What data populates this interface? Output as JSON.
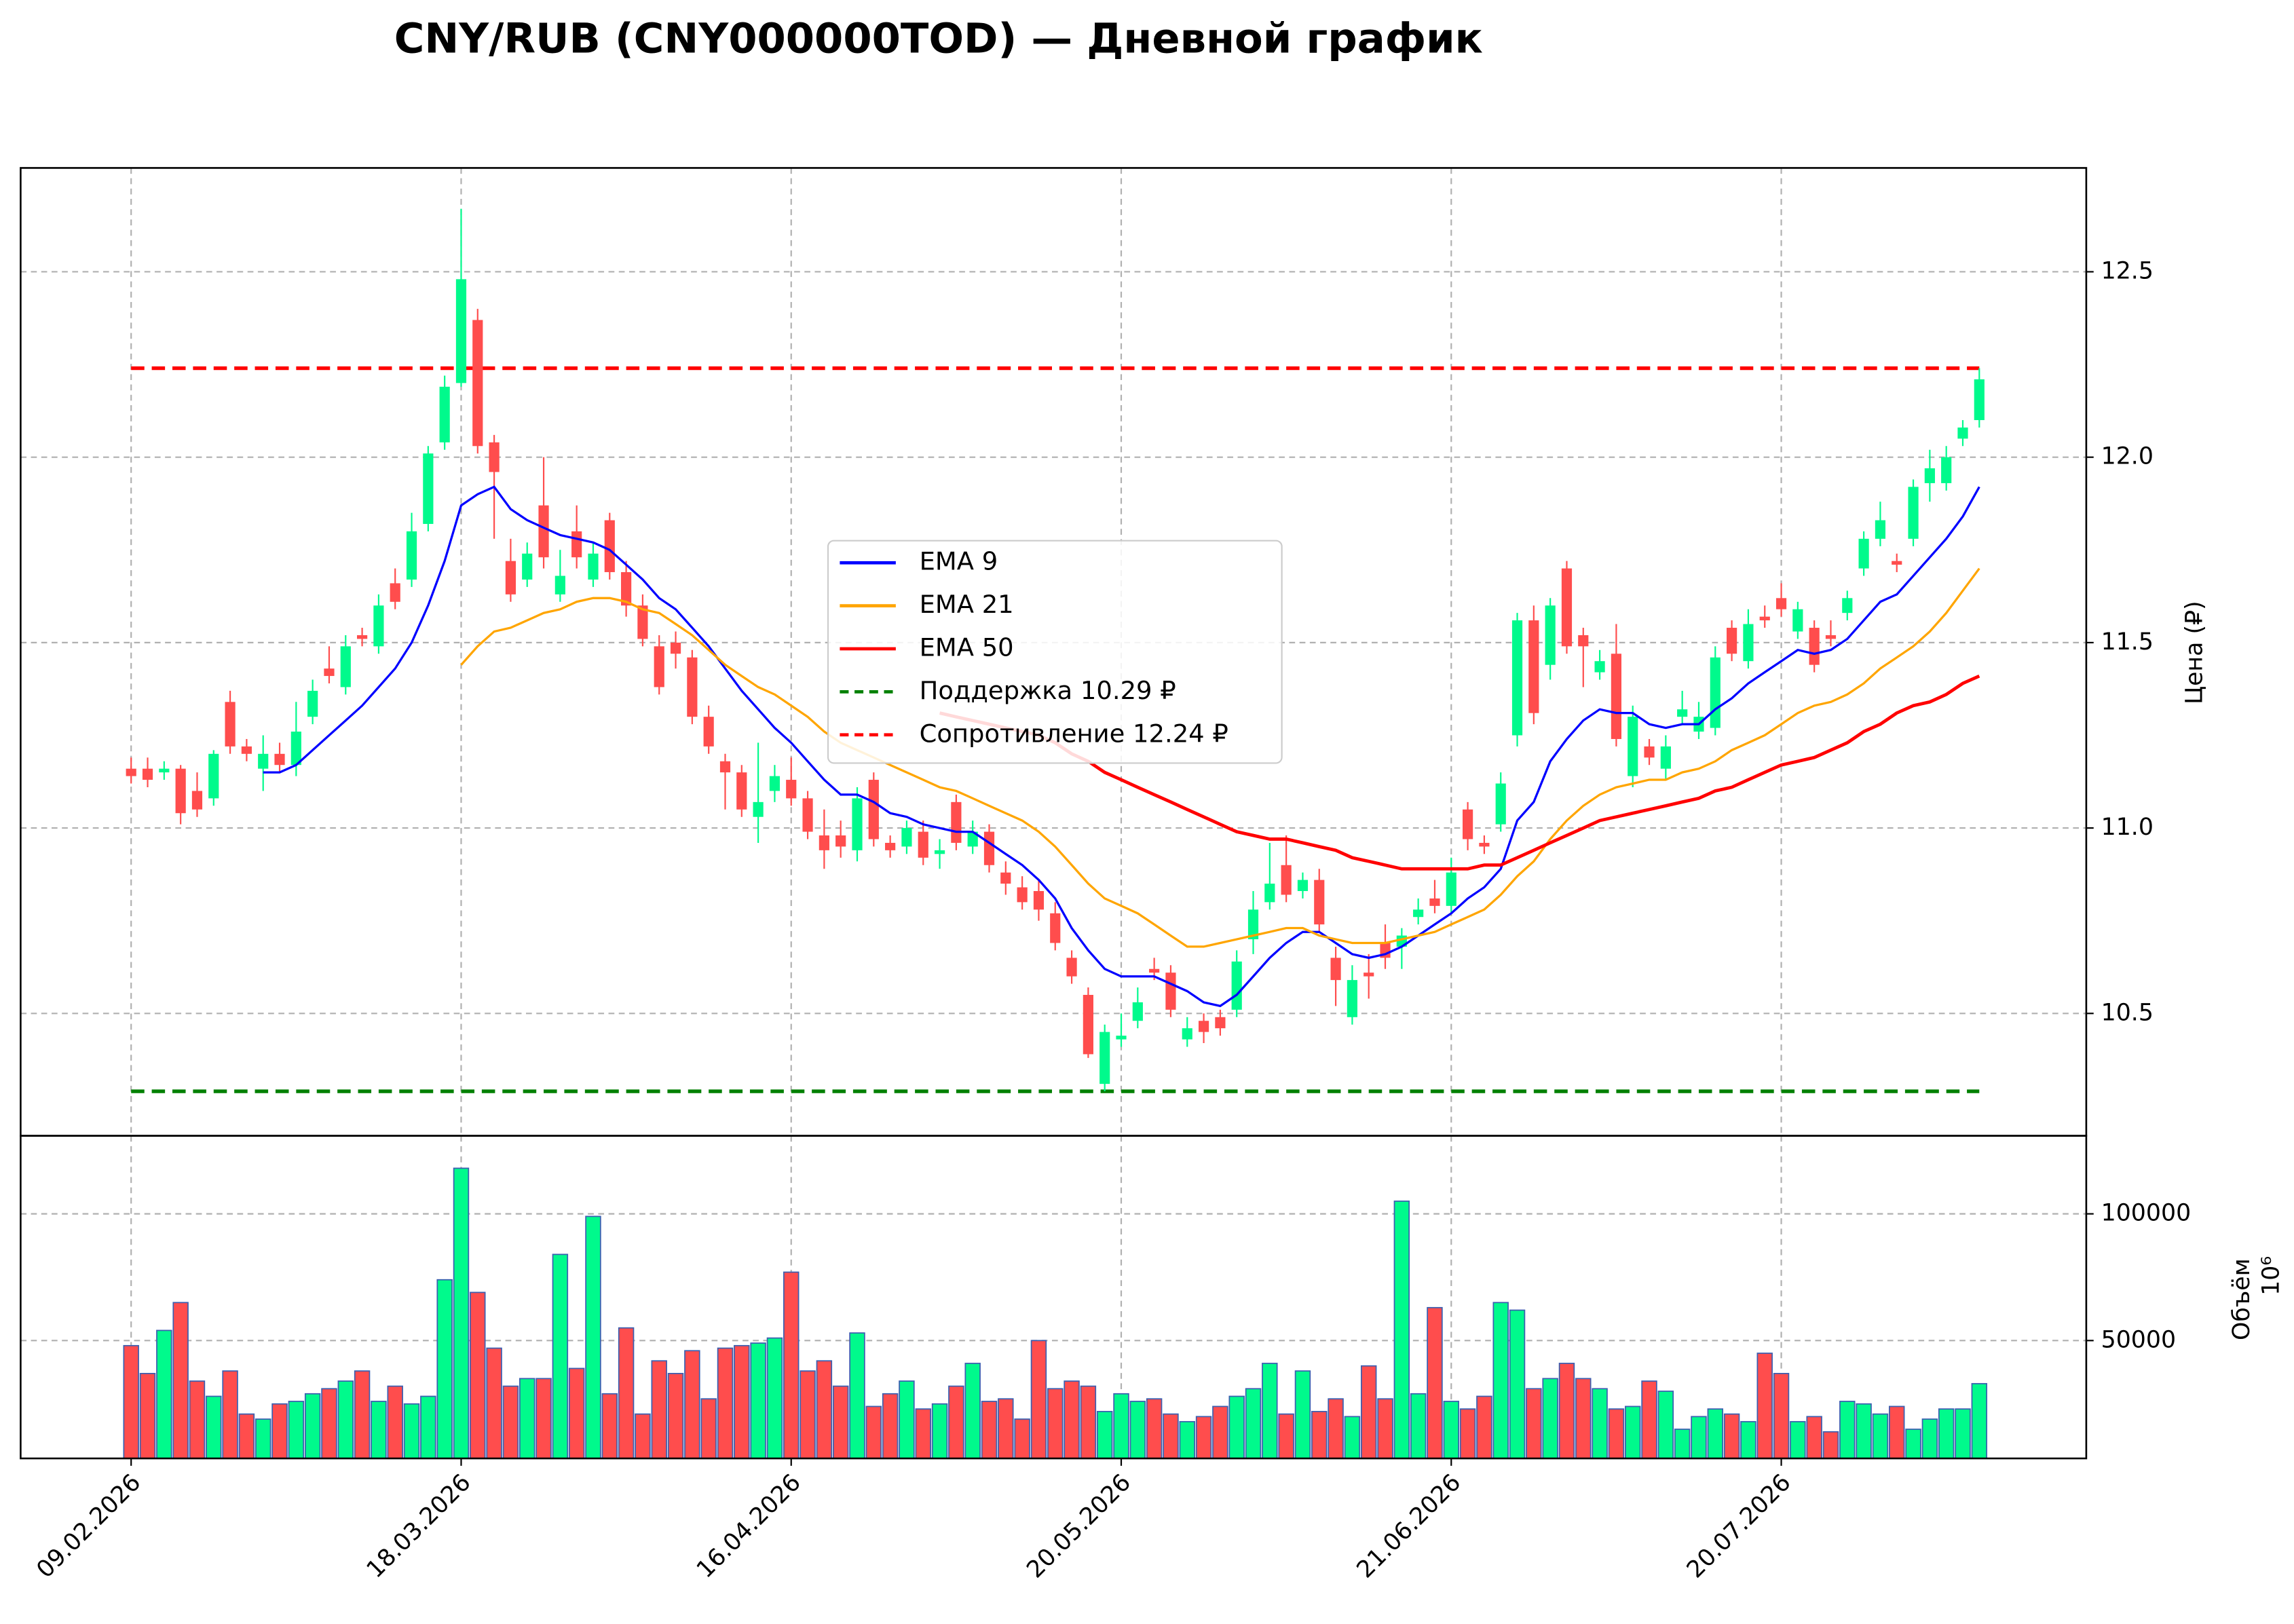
{
  "chart_data": {
    "type": "candlestick",
    "title": "CNY/RUB (CNY000000TOD) — Дневной график",
    "y_label": "Цена (₽)",
    "categories": [
      "09.02.2026",
      null,
      null,
      null,
      null,
      null,
      null,
      null,
      null,
      null,
      null,
      null,
      null,
      null,
      null,
      null,
      null,
      null,
      null,
      null,
      "18.03.2026",
      null,
      null,
      null,
      null,
      null,
      null,
      null,
      null,
      null,
      null,
      null,
      null,
      null,
      null,
      null,
      null,
      null,
      null,
      null,
      "16.04.2026",
      null,
      null,
      null,
      null,
      null,
      null,
      null,
      null,
      null,
      null,
      null,
      null,
      null,
      null,
      null,
      null,
      null,
      null,
      null,
      "20.05.2026",
      null,
      null,
      null,
      null,
      null,
      null,
      null,
      null,
      null,
      null,
      null,
      null,
      null,
      null,
      null,
      null,
      null,
      null,
      null,
      "21.06.2026",
      null,
      null,
      null,
      null,
      null,
      null,
      null,
      null,
      null,
      null,
      null,
      null,
      null,
      null,
      null,
      null,
      null,
      null,
      null,
      "20.07.2026",
      null,
      null,
      null,
      null,
      null,
      null,
      null,
      null,
      null,
      null,
      null,
      null
    ],
    "open": [
      11.16,
      11.16,
      11.15,
      11.16,
      11.1,
      11.08,
      11.34,
      11.22,
      11.16,
      11.2,
      11.17,
      11.3,
      11.43,
      11.38,
      11.52,
      11.49,
      11.66,
      11.67,
      11.82,
      12.04,
      12.2,
      12.37,
      12.04,
      11.72,
      11.67,
      11.87,
      11.63,
      11.8,
      11.67,
      11.83,
      11.69,
      11.6,
      11.49,
      11.5,
      11.46,
      11.3,
      11.18,
      11.15,
      11.03,
      11.1,
      11.13,
      11.08,
      10.98,
      10.98,
      10.94,
      11.13,
      10.96,
      10.95,
      10.99,
      10.93,
      11.07,
      10.95,
      10.99,
      10.88,
      10.84,
      10.83,
      10.77,
      10.65,
      10.55,
      10.31,
      10.43,
      10.48,
      10.62,
      10.61,
      10.43,
      10.48,
      10.49,
      10.51,
      10.7,
      10.8,
      10.9,
      10.83,
      10.86,
      10.65,
      10.49,
      10.61,
      10.69,
      10.68,
      10.76,
      10.81,
      10.79,
      11.05,
      10.96,
      11.01,
      11.25,
      11.56,
      11.44,
      11.7,
      11.52,
      11.42,
      11.47,
      11.14,
      11.22,
      11.16,
      11.3,
      11.26,
      11.27,
      11.54,
      11.45,
      11.57,
      11.62,
      11.53,
      11.54,
      11.52,
      11.58,
      11.7,
      11.78,
      11.72,
      11.78,
      11.93,
      11.93,
      12.05,
      12.1
    ],
    "high": [
      11.19,
      11.19,
      11.18,
      11.17,
      11.15,
      11.21,
      11.37,
      11.24,
      11.25,
      11.23,
      11.34,
      11.4,
      11.49,
      11.52,
      11.54,
      11.63,
      11.7,
      11.85,
      12.03,
      12.22,
      12.67,
      12.4,
      12.06,
      11.78,
      11.77,
      12.0,
      11.75,
      11.87,
      11.77,
      11.85,
      11.72,
      11.63,
      11.52,
      11.53,
      11.48,
      11.33,
      11.2,
      11.17,
      11.23,
      11.17,
      11.19,
      11.1,
      11.05,
      11.02,
      11.11,
      11.15,
      10.98,
      11.02,
      11.02,
      10.97,
      11.09,
      11.02,
      11.01,
      10.91,
      10.87,
      10.86,
      10.8,
      10.67,
      10.57,
      10.47,
      10.5,
      10.57,
      10.65,
      10.63,
      10.49,
      10.5,
      10.51,
      10.67,
      10.83,
      10.96,
      10.98,
      10.88,
      10.89,
      10.68,
      10.63,
      10.66,
      10.74,
      10.73,
      10.81,
      10.86,
      10.92,
      11.07,
      10.98,
      11.15,
      11.58,
      11.6,
      11.62,
      11.72,
      11.54,
      11.48,
      11.55,
      11.33,
      11.24,
      11.25,
      11.37,
      11.34,
      11.49,
      11.56,
      11.59,
      11.6,
      11.66,
      11.61,
      11.56,
      11.56,
      11.64,
      11.8,
      11.88,
      11.74,
      11.94,
      12.02,
      12.03,
      12.1,
      12.24
    ],
    "low": [
      11.12,
      11.11,
      11.13,
      11.01,
      11.03,
      11.06,
      11.2,
      11.18,
      11.1,
      11.15,
      11.14,
      11.28,
      11.39,
      11.36,
      11.49,
      11.47,
      11.59,
      11.65,
      11.8,
      12.02,
      12.19,
      12.01,
      11.78,
      11.61,
      11.65,
      11.7,
      11.61,
      11.7,
      11.65,
      11.67,
      11.57,
      11.49,
      11.36,
      11.43,
      11.28,
      11.2,
      11.05,
      11.03,
      10.96,
      11.07,
      11.06,
      10.97,
      10.89,
      10.92,
      10.91,
      10.95,
      10.92,
      10.93,
      10.9,
      10.89,
      10.94,
      10.93,
      10.88,
      10.82,
      10.78,
      10.75,
      10.67,
      10.58,
      10.38,
      10.29,
      10.41,
      10.46,
      10.59,
      10.49,
      10.41,
      10.42,
      10.44,
      10.49,
      10.66,
      10.78,
      10.8,
      10.81,
      10.72,
      10.52,
      10.47,
      10.54,
      10.62,
      10.62,
      10.74,
      10.77,
      10.77,
      10.94,
      10.93,
      10.99,
      11.22,
      11.28,
      11.4,
      11.47,
      11.38,
      11.4,
      11.22,
      11.11,
      11.17,
      11.13,
      11.28,
      11.24,
      11.25,
      11.45,
      11.43,
      11.54,
      11.57,
      11.51,
      11.42,
      11.49,
      11.56,
      11.68,
      11.76,
      11.69,
      11.76,
      11.88,
      11.91,
      12.03,
      12.08
    ],
    "close": [
      11.14,
      11.13,
      11.16,
      11.04,
      11.05,
      11.2,
      11.22,
      11.2,
      11.2,
      11.17,
      11.26,
      11.37,
      11.41,
      11.49,
      11.51,
      11.6,
      11.61,
      11.8,
      12.01,
      12.19,
      12.48,
      12.03,
      11.96,
      11.63,
      11.74,
      11.73,
      11.68,
      11.73,
      11.74,
      11.69,
      11.6,
      11.51,
      11.38,
      11.47,
      11.3,
      11.22,
      11.15,
      11.05,
      11.07,
      11.14,
      11.08,
      10.99,
      10.94,
      10.95,
      11.08,
      10.97,
      10.94,
      11.0,
      10.92,
      10.94,
      10.96,
      10.99,
      10.9,
      10.85,
      10.8,
      10.78,
      10.69,
      10.6,
      10.39,
      10.45,
      10.44,
      10.53,
      10.61,
      10.51,
      10.46,
      10.45,
      10.46,
      10.64,
      10.78,
      10.85,
      10.82,
      10.86,
      10.74,
      10.59,
      10.59,
      10.6,
      10.65,
      10.71,
      10.78,
      10.79,
      10.88,
      10.97,
      10.95,
      11.12,
      11.56,
      11.31,
      11.6,
      11.49,
      11.49,
      11.45,
      11.24,
      11.3,
      11.19,
      11.22,
      11.32,
      11.3,
      11.46,
      11.47,
      11.55,
      11.56,
      11.59,
      11.59,
      11.44,
      11.51,
      11.62,
      11.78,
      11.83,
      11.71,
      11.92,
      11.97,
      12.0,
      12.08,
      12.21
    ],
    "up_color": "#00fa8c",
    "down_color": "#ff4d4d",
    "ylim": [
      10.17,
      12.78
    ],
    "yticks": [
      10.5,
      {
        "value": 11,
        "label": "11.0"
      },
      11.5,
      {
        "value": 12,
        "label": "12.0"
      },
      12.5
    ],
    "grid": true,
    "legend": "center",
    "series": [
      {
        "name": "EMA 9",
        "color": "#0000ff",
        "values": [
          null,
          null,
          null,
          null,
          null,
          null,
          null,
          null,
          11.15,
          11.15,
          11.17,
          11.21,
          11.25,
          11.29,
          11.33,
          11.38,
          11.43,
          11.5,
          11.6,
          11.72,
          11.87,
          11.9,
          11.92,
          11.86,
          11.83,
          11.81,
          11.79,
          11.78,
          11.77,
          11.75,
          11.71,
          11.67,
          11.62,
          11.59,
          11.54,
          11.49,
          11.43,
          11.37,
          11.32,
          11.27,
          11.23,
          11.18,
          11.13,
          11.09,
          11.09,
          11.07,
          11.04,
          11.03,
          11.01,
          11.0,
          10.99,
          10.99,
          10.96,
          10.93,
          10.9,
          10.86,
          10.81,
          10.73,
          10.67,
          10.62,
          10.6,
          10.6,
          10.6,
          10.58,
          10.56,
          10.53,
          10.52,
          10.55,
          10.6,
          10.65,
          10.69,
          10.72,
          10.72,
          10.69,
          10.66,
          10.65,
          10.66,
          10.68,
          10.71,
          10.74,
          10.77,
          10.81,
          10.84,
          10.89,
          11.02,
          11.07,
          11.18,
          11.24,
          11.29,
          11.32,
          11.31,
          11.31,
          11.28,
          11.27,
          11.28,
          11.28,
          11.32,
          11.35,
          11.39,
          11.42,
          11.45,
          11.48,
          11.47,
          11.48,
          11.51,
          11.56,
          11.61,
          11.63,
          11.68,
          11.73,
          11.78,
          11.84,
          11.92
        ]
      },
      {
        "name": "EMA 21",
        "color": "#ffa500",
        "values": [
          null,
          null,
          null,
          null,
          null,
          null,
          null,
          null,
          null,
          null,
          null,
          null,
          null,
          null,
          null,
          null,
          null,
          null,
          null,
          null,
          11.44,
          11.49,
          11.53,
          11.54,
          11.56,
          11.58,
          11.59,
          11.61,
          11.62,
          11.62,
          11.61,
          11.59,
          11.58,
          11.55,
          11.52,
          11.48,
          11.44,
          11.41,
          11.38,
          11.36,
          11.33,
          11.3,
          11.26,
          11.23,
          11.21,
          11.19,
          11.17,
          11.15,
          11.13,
          11.11,
          11.1,
          11.08,
          11.06,
          11.04,
          11.02,
          10.99,
          10.95,
          10.9,
          10.85,
          10.81,
          10.79,
          10.77,
          10.74,
          10.71,
          10.68,
          10.68,
          10.69,
          10.7,
          10.71,
          10.72,
          10.73,
          10.73,
          10.71,
          10.7,
          10.69,
          10.69,
          10.69,
          10.7,
          10.71,
          10.72,
          10.74,
          10.76,
          10.78,
          10.82,
          10.87,
          10.91,
          10.97,
          11.02,
          11.06,
          11.09,
          11.11,
          11.12,
          11.13,
          11.13,
          11.15,
          11.16,
          11.18,
          11.21,
          11.23,
          11.25,
          11.28,
          11.31,
          11.33,
          11.34,
          11.36,
          11.39,
          11.43,
          11.46,
          11.49,
          11.53,
          11.58,
          11.64,
          11.7
        ]
      },
      {
        "name": "EMA 50",
        "color": "#ff0000",
        "values": [
          null,
          null,
          null,
          null,
          null,
          null,
          null,
          null,
          null,
          null,
          null,
          null,
          null,
          null,
          null,
          null,
          null,
          null,
          null,
          null,
          null,
          null,
          null,
          null,
          null,
          null,
          null,
          null,
          null,
          null,
          null,
          null,
          null,
          null,
          null,
          null,
          null,
          null,
          null,
          null,
          null,
          null,
          null,
          null,
          null,
          null,
          null,
          null,
          null,
          11.31,
          11.3,
          11.29,
          11.28,
          11.27,
          11.26,
          11.25,
          11.23,
          11.2,
          11.18,
          11.15,
          11.13,
          11.11,
          11.09,
          11.07,
          11.05,
          11.03,
          11.01,
          10.99,
          10.98,
          10.97,
          10.97,
          10.96,
          10.95,
          10.94,
          10.92,
          10.91,
          10.9,
          10.89,
          10.89,
          10.89,
          10.89,
          10.89,
          10.9,
          10.9,
          10.92,
          10.94,
          10.96,
          10.98,
          11.0,
          11.02,
          11.03,
          11.04,
          11.05,
          11.06,
          11.07,
          11.08,
          11.1,
          11.11,
          11.13,
          11.15,
          11.17,
          11.18,
          11.19,
          11.21,
          11.23,
          11.26,
          11.28,
          11.31,
          11.33,
          11.34,
          11.36,
          11.39,
          11.41
        ]
      }
    ],
    "hlines": [
      {
        "name": "Поддержка 10.29 ₽",
        "value": 10.29,
        "color": "#008000"
      },
      {
        "name": "Сопротивление 12.24 ₽",
        "value": 12.24,
        "color": "#ff0000"
      }
    ],
    "volume": {
      "y_label": "Объём",
      "offset_text": "10⁶",
      "ylim": [
        3490,
        130800
      ],
      "yticks": [
        50000,
        100000
      ],
      "values": [
        48000,
        37000,
        54000,
        65000,
        34000,
        28000,
        38000,
        21000,
        19000,
        25000,
        26000,
        29000,
        31000,
        34000,
        38000,
        26000,
        32000,
        25000,
        28000,
        74000,
        118000,
        69000,
        47000,
        32000,
        35000,
        35000,
        84000,
        39000,
        99000,
        29000,
        55000,
        21000,
        42000,
        37000,
        46000,
        27000,
        47000,
        48000,
        49000,
        51000,
        77000,
        38000,
        42000,
        32000,
        53000,
        24000,
        29000,
        34000,
        23000,
        25000,
        32000,
        41000,
        26000,
        27000,
        19000,
        50000,
        31000,
        34000,
        32000,
        22000,
        29000,
        26000,
        27000,
        21000,
        18000,
        20000,
        24000,
        28000,
        31000,
        41000,
        21000,
        38000,
        22000,
        27000,
        20000,
        40000,
        27000,
        105000,
        29000,
        63000,
        26000,
        23000,
        28000,
        65000,
        62000,
        31000,
        35000,
        41000,
        35000,
        31000,
        23000,
        24000,
        34000,
        30000,
        15000,
        20000,
        23000,
        21000,
        18000,
        45000,
        37000,
        18000,
        20000,
        14000,
        26000,
        25000,
        21000,
        24000,
        15000,
        19000,
        23000,
        23000,
        33000
      ]
    }
  }
}
